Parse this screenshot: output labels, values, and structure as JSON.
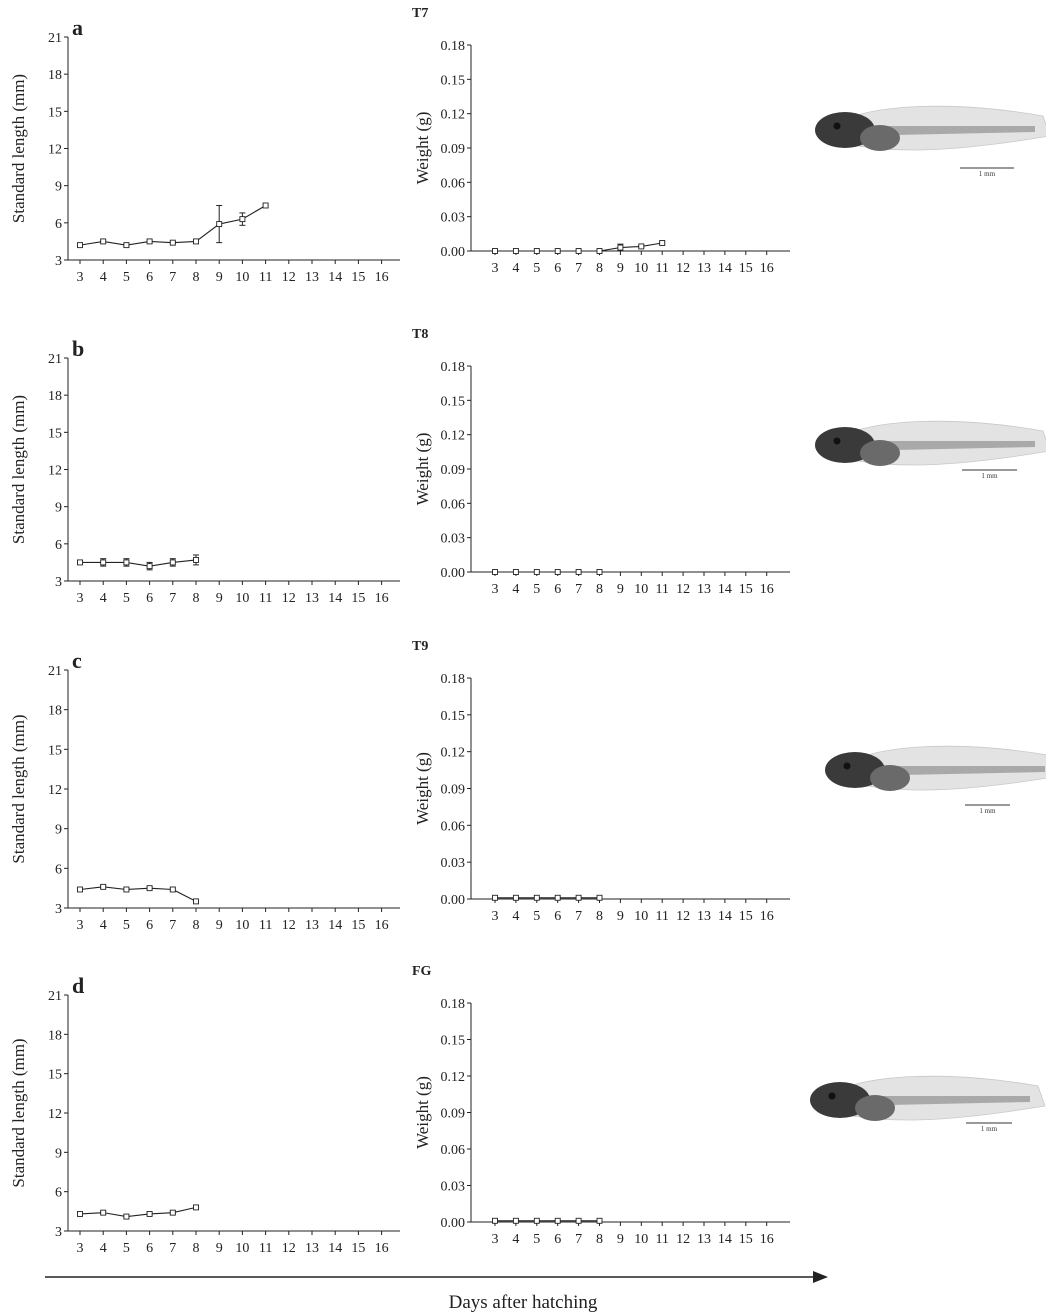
{
  "figure": {
    "xlabel": "Days after hatching",
    "scale_label": "1 mm",
    "colors": {
      "line": "#222222",
      "marker_fill": "#ffffff",
      "text": "#222222"
    }
  },
  "chart_data": [
    {
      "type": "line",
      "panel": "a",
      "ylabel": "Standard length (mm)",
      "ylim": [
        3,
        21
      ],
      "yticks": [
        3,
        6,
        9,
        12,
        15,
        18,
        21
      ],
      "xticks": [
        3,
        4,
        5,
        6,
        7,
        8,
        9,
        10,
        11,
        12,
        13,
        14,
        15,
        16
      ],
      "x": [
        3,
        4,
        5,
        6,
        7,
        8,
        9,
        10,
        11
      ],
      "y": [
        4.2,
        4.5,
        4.2,
        4.5,
        4.4,
        4.5,
        5.9,
        6.3,
        7.4
      ],
      "err": [
        0.1,
        0.1,
        0.1,
        0.1,
        0.1,
        0.1,
        1.5,
        0.5,
        0.1
      ]
    },
    {
      "type": "line",
      "panel": "T7",
      "ylabel": "Weight (g)",
      "ylim": [
        0,
        0.18
      ],
      "yticks": [
        "0.00",
        "0.03",
        "0.06",
        "0.09",
        "0.12",
        "0.15",
        "0.18"
      ],
      "xticks": [
        3,
        4,
        5,
        6,
        7,
        8,
        9,
        10,
        11,
        12,
        13,
        14,
        15,
        16
      ],
      "x": [
        3,
        4,
        5,
        6,
        7,
        8,
        9,
        10,
        11
      ],
      "y": [
        0.0,
        0.0,
        0.0,
        0.0,
        0.0,
        0.0,
        0.003,
        0.004,
        0.007
      ],
      "err": [
        0,
        0,
        0,
        0,
        0,
        0,
        0.003,
        0.001,
        0.001
      ]
    },
    {
      "type": "line",
      "panel": "b",
      "ylabel": "Standard length (mm)",
      "ylim": [
        3,
        21
      ],
      "yticks": [
        3,
        6,
        9,
        12,
        15,
        18,
        21
      ],
      "xticks": [
        3,
        4,
        5,
        6,
        7,
        8,
        9,
        10,
        11,
        12,
        13,
        14,
        15,
        16
      ],
      "x": [
        3,
        4,
        5,
        6,
        7,
        8
      ],
      "y": [
        4.5,
        4.5,
        4.5,
        4.2,
        4.5,
        4.7
      ],
      "err": [
        0.1,
        0.3,
        0.3,
        0.3,
        0.3,
        0.4
      ]
    },
    {
      "type": "line",
      "panel": "T8",
      "ylabel": "Weight (g)",
      "ylim": [
        0,
        0.18
      ],
      "yticks": [
        "0.00",
        "0.03",
        "0.06",
        "0.09",
        "0.12",
        "0.15",
        "0.18"
      ],
      "xticks": [
        3,
        4,
        5,
        6,
        7,
        8,
        9,
        10,
        11,
        12,
        13,
        14,
        15,
        16
      ],
      "x": [
        3,
        4,
        5,
        6,
        7,
        8
      ],
      "y": [
        0.0,
        0.0,
        0.0,
        0.0,
        0.0,
        0.0
      ],
      "err": [
        0,
        0,
        0,
        0,
        0,
        0
      ]
    },
    {
      "type": "line",
      "panel": "c",
      "ylabel": "Standard length (mm)",
      "ylim": [
        3,
        21
      ],
      "yticks": [
        3,
        6,
        9,
        12,
        15,
        18,
        21
      ],
      "xticks": [
        3,
        4,
        5,
        6,
        7,
        8,
        9,
        10,
        11,
        12,
        13,
        14,
        15,
        16
      ],
      "x": [
        3,
        4,
        5,
        6,
        7,
        8
      ],
      "y": [
        4.4,
        4.6,
        4.4,
        4.5,
        4.4,
        3.5
      ],
      "err": [
        0.1,
        0.1,
        0.1,
        0.1,
        0.1,
        0.1
      ]
    },
    {
      "type": "line",
      "panel": "T9",
      "ylabel": "Weight (g)",
      "ylim": [
        0,
        0.18
      ],
      "yticks": [
        "0.00",
        "0.03",
        "0.06",
        "0.09",
        "0.12",
        "0.15",
        "0.18"
      ],
      "xticks": [
        3,
        4,
        5,
        6,
        7,
        8,
        9,
        10,
        11,
        12,
        13,
        14,
        15,
        16
      ],
      "x": [
        3,
        4,
        5,
        6,
        7,
        8
      ],
      "y": [
        0.001,
        0.001,
        0.001,
        0.001,
        0.001,
        0.001
      ],
      "err": [
        0,
        0,
        0,
        0,
        0,
        0
      ]
    },
    {
      "type": "line",
      "panel": "d",
      "ylabel": "Standard length (mm)",
      "ylim": [
        3,
        21
      ],
      "yticks": [
        3,
        6,
        9,
        12,
        15,
        18,
        21
      ],
      "xticks": [
        3,
        4,
        5,
        6,
        7,
        8,
        9,
        10,
        11,
        12,
        13,
        14,
        15,
        16
      ],
      "x": [
        3,
        4,
        5,
        6,
        7,
        8
      ],
      "y": [
        4.3,
        4.4,
        4.1,
        4.3,
        4.4,
        4.8
      ],
      "err": [
        0.1,
        0.1,
        0.1,
        0.1,
        0.1,
        0.1
      ]
    },
    {
      "type": "line",
      "panel": "FG",
      "ylabel": "Weight (g)",
      "ylim": [
        0,
        0.18
      ],
      "yticks": [
        "0.00",
        "0.03",
        "0.06",
        "0.09",
        "0.12",
        "0.15",
        "0.18"
      ],
      "xticks": [
        3,
        4,
        5,
        6,
        7,
        8,
        9,
        10,
        11,
        12,
        13,
        14,
        15,
        16
      ],
      "x": [
        3,
        4,
        5,
        6,
        7,
        8
      ],
      "y": [
        0.001,
        0.001,
        0.001,
        0.001,
        0.001,
        0.001
      ],
      "err": [
        0,
        0,
        0,
        0,
        0,
        0
      ]
    }
  ]
}
